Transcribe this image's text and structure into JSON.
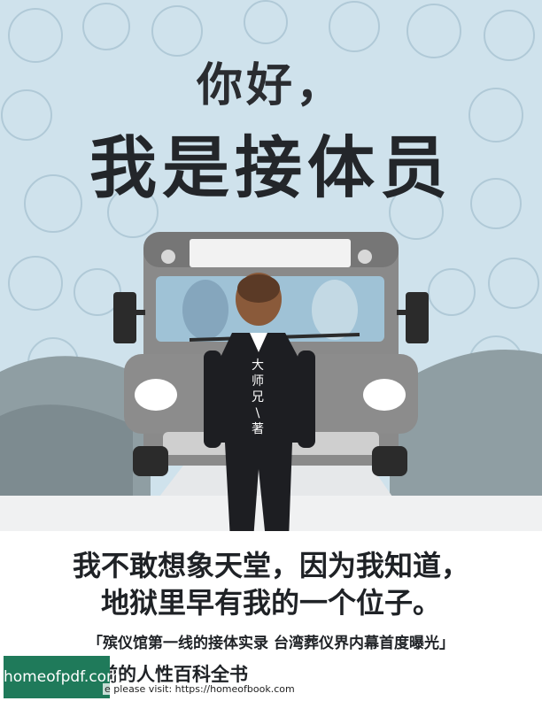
{
  "cover": {
    "title_line1": "你好，",
    "title_line2": "我是接体员",
    "author_lines": [
      "大",
      "师",
      "兄",
      "\\",
      "著"
    ],
    "tagline_line1": "我不敢想象天堂，因为我知道，",
    "tagline_line2": "地狱里早有我的一个位子。",
    "subtitle": "「殡仪馆第一线的接体实录 台湾葬仪界内幕首度曝光」",
    "description": "前的人性百科全书"
  },
  "watermark": {
    "badge_text": "homeofpdf.com",
    "overlay_text": "e please visit: https://homeofbook.com",
    "badge_color": "#1f7a5a"
  },
  "colors": {
    "sky": "#cfe2ec",
    "hills": "#8f9ea3",
    "bus": "#8a8a8a",
    "suit": "#1d1e22"
  }
}
